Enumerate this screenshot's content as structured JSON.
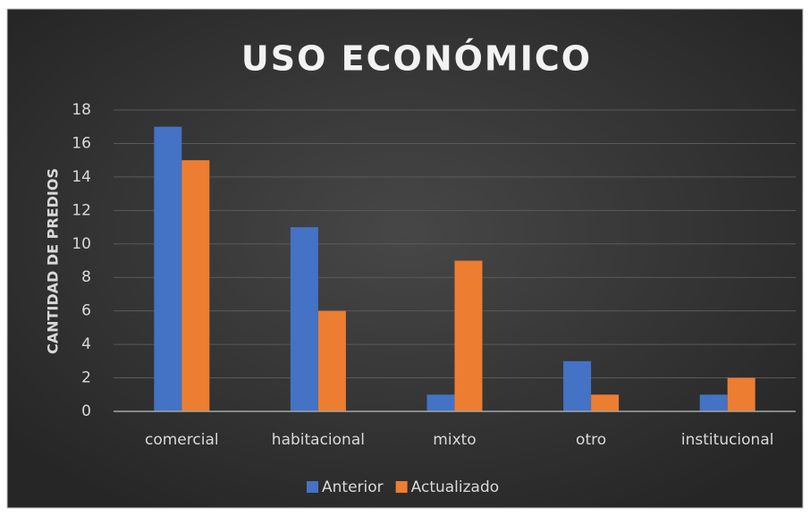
{
  "chart_data": {
    "type": "bar",
    "title": "USO ECONÓMICO",
    "y_label": "CANTIDAD DE PREDIOS",
    "categories": [
      "comercial",
      "habitacional",
      "mixto",
      "otro",
      "institucional"
    ],
    "series": [
      {
        "name": "Anterior",
        "color": "#4472c4",
        "values": [
          17,
          11,
          1,
          3,
          1
        ]
      },
      {
        "name": "Actualizado",
        "color": "#ed7d31",
        "values": [
          15,
          6,
          9,
          1,
          2
        ]
      }
    ],
    "ylim": [
      0,
      18
    ],
    "yticks": [
      0,
      2,
      4,
      6,
      8,
      10,
      12,
      14,
      16,
      18
    ],
    "grid": true,
    "legend": "bottom"
  }
}
